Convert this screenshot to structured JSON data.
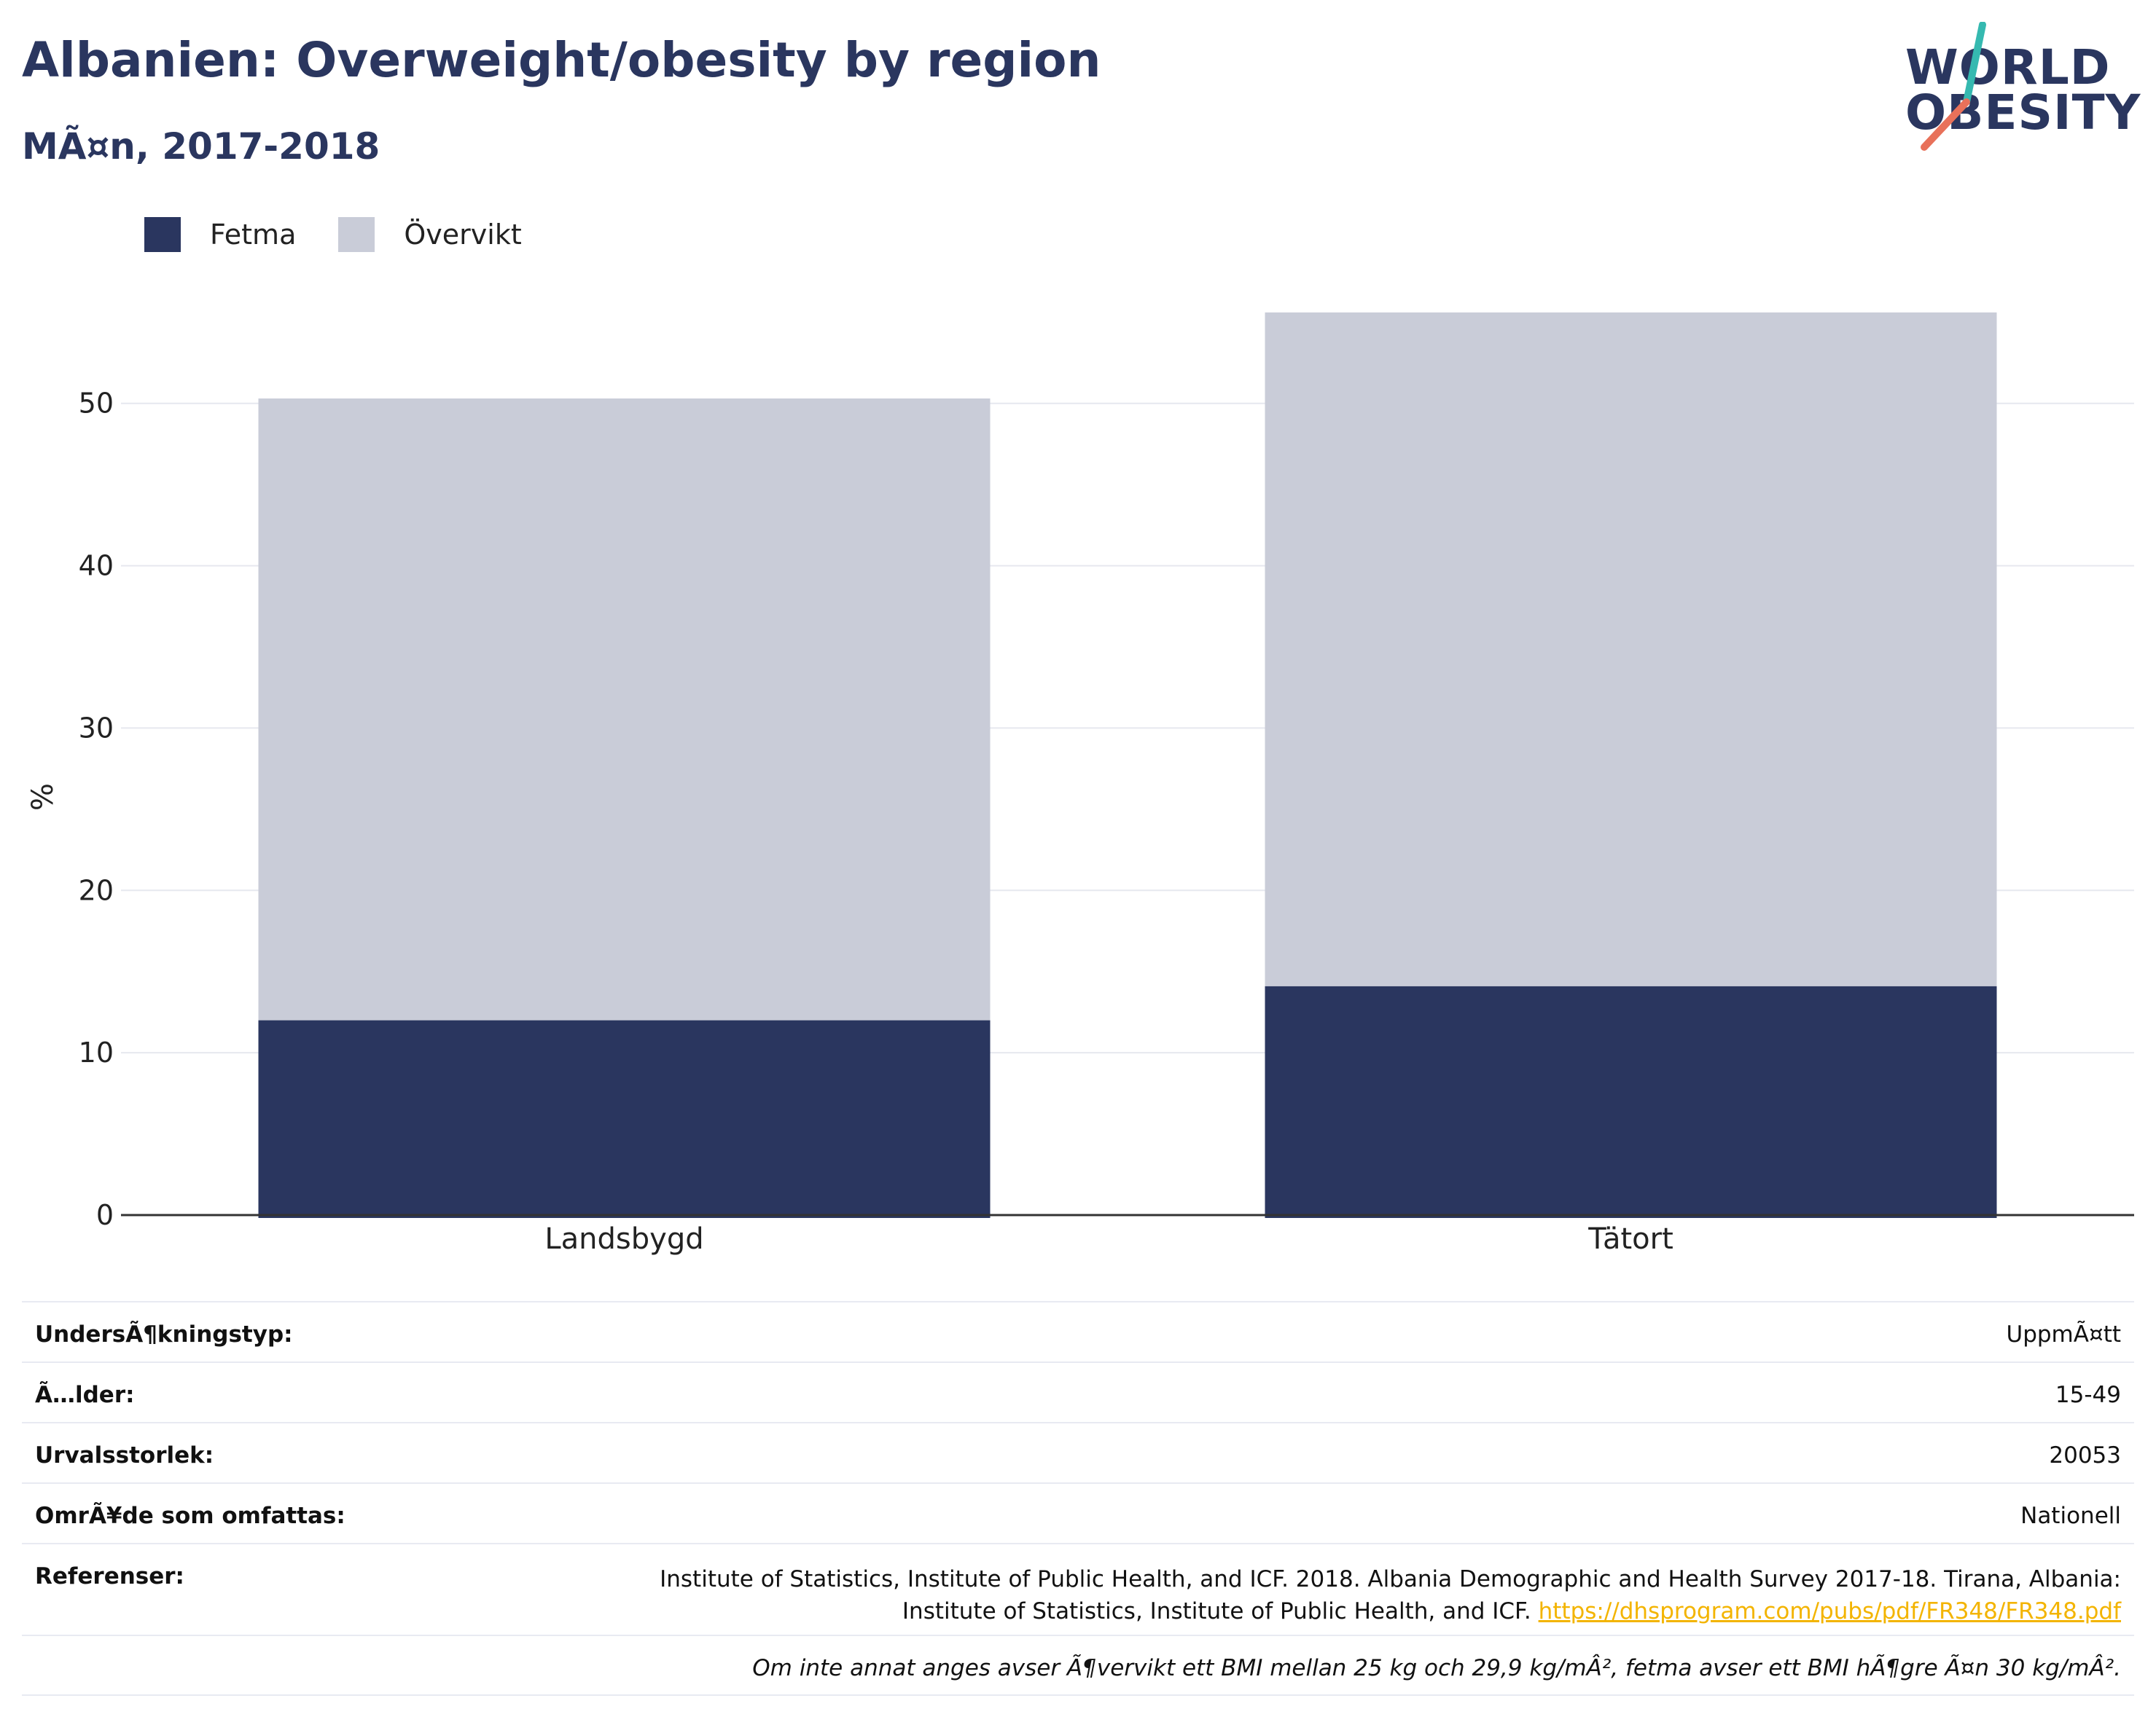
{
  "header": {
    "title": "Albanien: Overweight/obesity by region",
    "subtitle": "MÃ¤n, 2017-2018"
  },
  "logo": {
    "line1": "WORLD",
    "line2": "OBESITY",
    "slash_colors": [
      "#35b9b0",
      "#e8715a"
    ]
  },
  "legend": [
    {
      "label": "Fetma",
      "color": "#2a365f"
    },
    {
      "label": "Övervikt",
      "color": "#c9ccd8"
    }
  ],
  "chart_data": {
    "type": "bar",
    "stacked": true,
    "categories": [
      "Landsbygd",
      "Tätort"
    ],
    "series": [
      {
        "name": "Fetma",
        "color": "#2a365f",
        "values": [
          12.0,
          14.1
        ]
      },
      {
        "name": "Övervikt",
        "color": "#c9ccd8",
        "values": [
          38.3,
          41.5
        ]
      }
    ],
    "ylabel": "%",
    "ylim": [
      0,
      56
    ],
    "yticks": [
      0,
      10,
      20,
      30,
      40,
      50
    ],
    "grid": true,
    "legend_position": "top-left"
  },
  "meta": {
    "survey_type": {
      "label": "UndersÃ¶kningstyp:",
      "value": "UppmÃ¤tt"
    },
    "age": {
      "label": "Ã…lder:",
      "value": "15-49"
    },
    "sample_size": {
      "label": "Urvalsstorlek:",
      "value": "20053"
    },
    "area": {
      "label": "OmrÃ¥de som omfattas:",
      "value": "Nationell"
    },
    "references": {
      "label": "Referenser:",
      "line1": "Institute of Statistics, Institute of Public Health, and ICF. 2018. Albania Demographic and Health Survey 2017-18. Tirana, Albania:",
      "line2": "Institute of Statistics, Institute of Public Health, and ICF.",
      "link": "https://dhsprogram.com/pubs/pdf/FR348/FR348.pdf"
    },
    "note": "Om inte annat anges avser Ã¶vervikt ett BMI mellan 25 kg och 29,9 kg/mÂ², fetma avser ett BMI hÃ¶gre Ã¤n 30 kg/mÂ²."
  }
}
